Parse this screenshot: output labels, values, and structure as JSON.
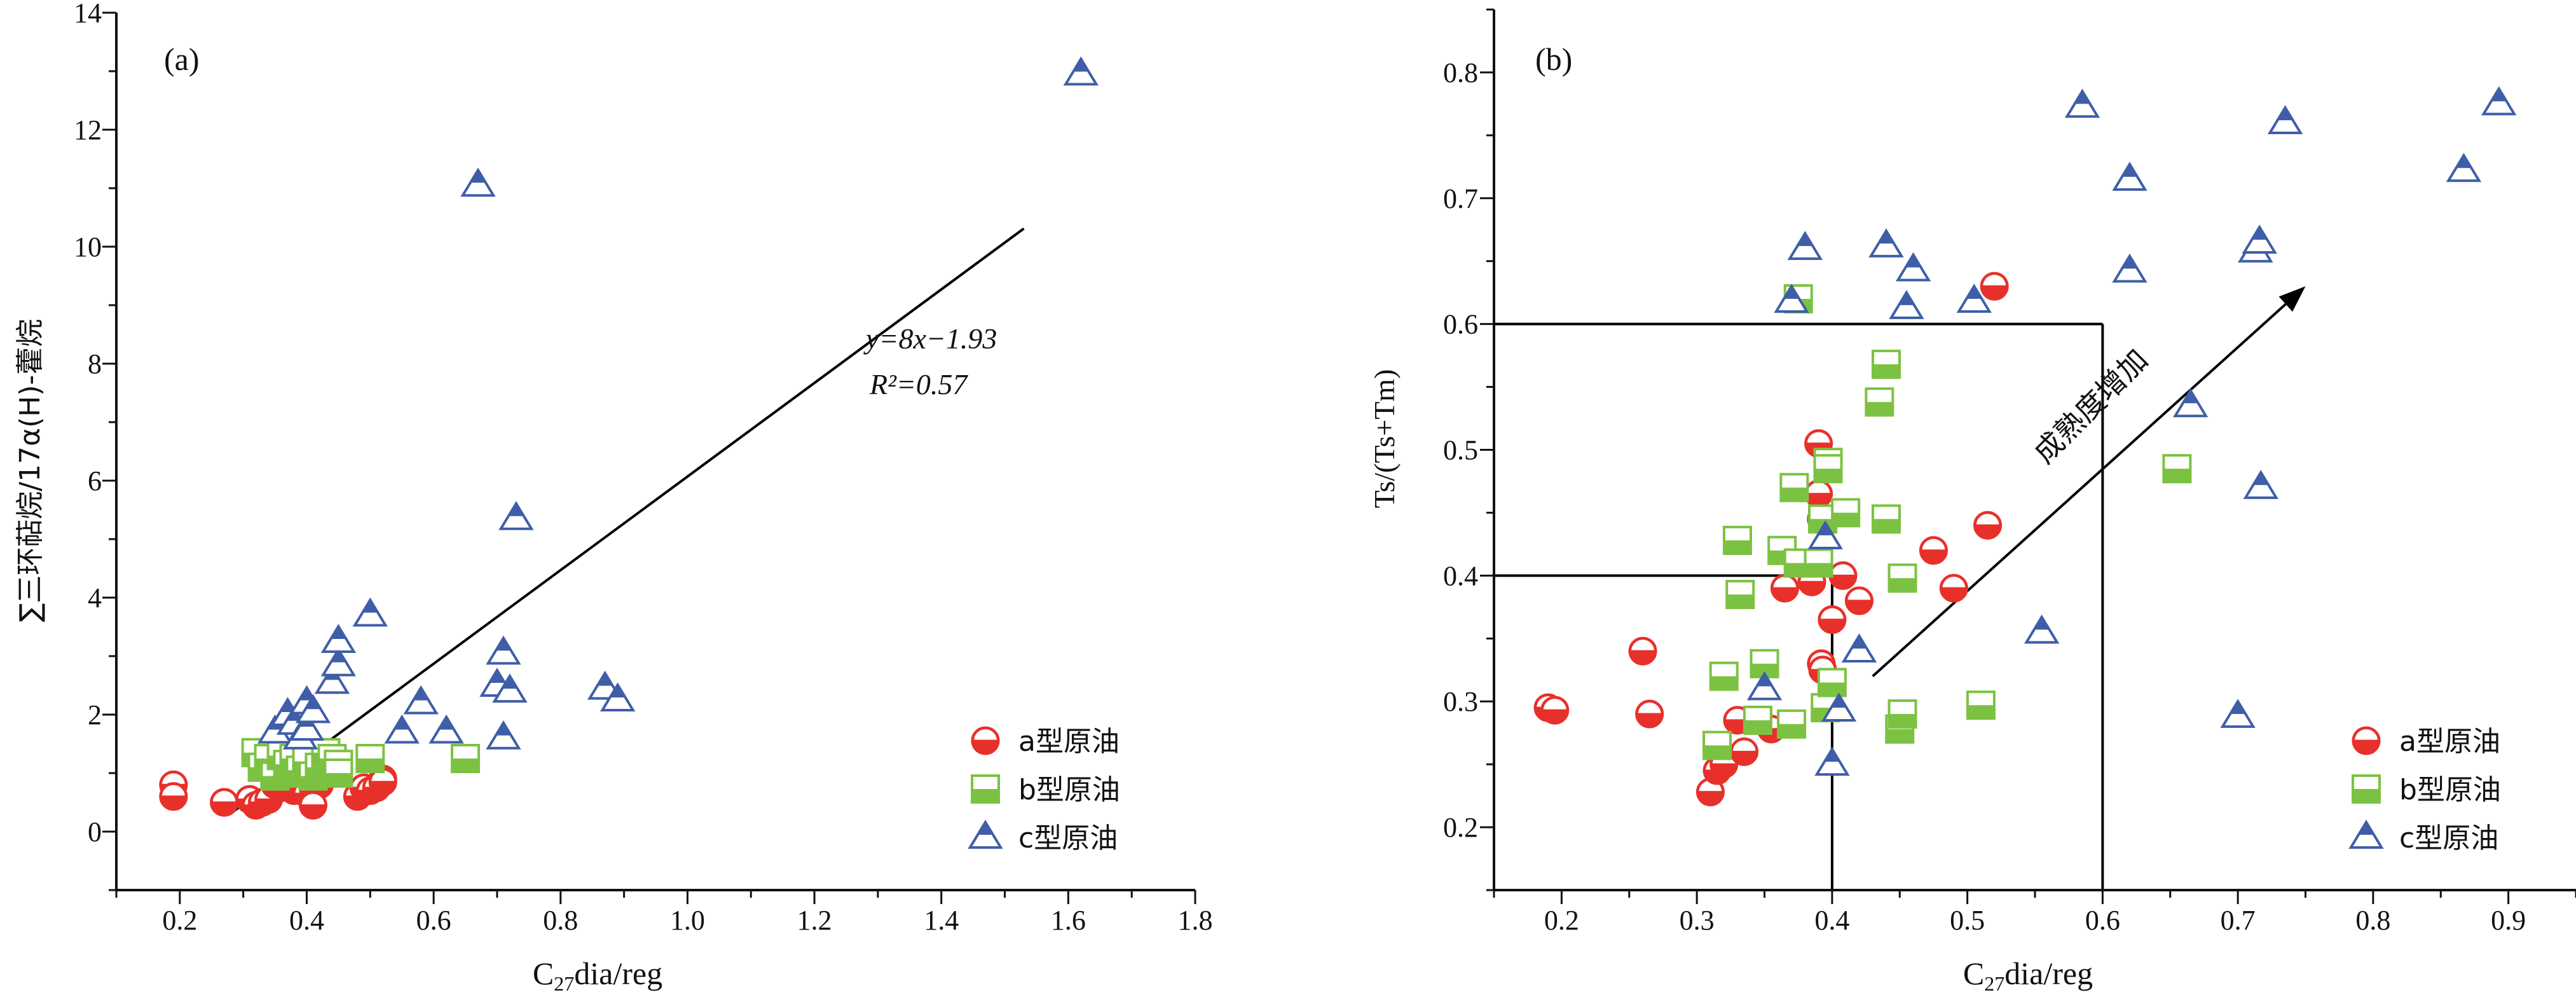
{
  "colors": {
    "a": "#e8302a",
    "b": "#7cc242",
    "c": "#3f5ea8",
    "axis": "#111111"
  },
  "legend_labels": [
    "a型原油",
    "b型原油",
    "c型原油"
  ],
  "chart_data": [
    {
      "type": "scatter",
      "panel_label": "(a)",
      "xlabel": "C27dia/reg",
      "ylabel": "∑三环萜烷/17α(H)-藿烷",
      "xlim": [
        0.1,
        1.8
      ],
      "ylim": [
        -1,
        14
      ],
      "xticks": [
        "0.2",
        "0.4",
        "0.6",
        "0.8",
        "1.0",
        "1.2",
        "1.4",
        "1.6",
        "1.8"
      ],
      "yticks": [
        "0",
        "2",
        "4",
        "6",
        "8",
        "10",
        "12",
        "14"
      ],
      "legend_position": "bottom-right",
      "equation": "y=8x−1.93",
      "r_squared": "R²=0.57",
      "fit_line": {
        "slope": 8,
        "intercept": -1.93,
        "x_range": [
          0.28,
          1.53
        ]
      },
      "series": [
        {
          "name": "a型原油",
          "marker": "circle",
          "points": [
            [
              0.19,
              0.8
            ],
            [
              0.19,
              0.6
            ],
            [
              0.27,
              0.5
            ],
            [
              0.27,
              0.5
            ],
            [
              0.31,
              0.55
            ],
            [
              0.32,
              0.45
            ],
            [
              0.33,
              0.5
            ],
            [
              0.34,
              0.55
            ],
            [
              0.35,
              0.8
            ],
            [
              0.36,
              0.75
            ],
            [
              0.37,
              0.9
            ],
            [
              0.38,
              0.7
            ],
            [
              0.39,
              0.85
            ],
            [
              0.4,
              0.65
            ],
            [
              0.41,
              0.75
            ],
            [
              0.42,
              0.8
            ],
            [
              0.41,
              0.45
            ],
            [
              0.43,
              0.95
            ],
            [
              0.48,
              0.6
            ],
            [
              0.49,
              0.75
            ],
            [
              0.5,
              0.7
            ],
            [
              0.51,
              0.75
            ],
            [
              0.52,
              0.9
            ],
            [
              0.52,
              0.85
            ]
          ]
        },
        {
          "name": "b型原油",
          "marker": "square",
          "points": [
            [
              0.32,
              1.35
            ],
            [
              0.33,
              1.1
            ],
            [
              0.34,
              1.25
            ],
            [
              0.35,
              0.95
            ],
            [
              0.36,
              1.3
            ],
            [
              0.37,
              1.15
            ],
            [
              0.38,
              1.0
            ],
            [
              0.38,
              1.25
            ],
            [
              0.39,
              1.05
            ],
            [
              0.4,
              1.2
            ],
            [
              0.41,
              0.95
            ],
            [
              0.42,
              1.1
            ],
            [
              0.43,
              1.35
            ],
            [
              0.44,
              1.25
            ],
            [
              0.45,
              1.15
            ],
            [
              0.45,
              1.0
            ],
            [
              0.5,
              1.25
            ],
            [
              0.65,
              1.25
            ]
          ]
        },
        {
          "name": "c型原油",
          "marker": "triangle",
          "points": [
            [
              0.35,
              1.7
            ],
            [
              0.37,
              2.0
            ],
            [
              0.38,
              1.85
            ],
            [
              0.39,
              1.6
            ],
            [
              0.4,
              1.75
            ],
            [
              0.4,
              2.2
            ],
            [
              0.41,
              2.05
            ],
            [
              0.44,
              2.55
            ],
            [
              0.45,
              2.85
            ],
            [
              0.45,
              3.25
            ],
            [
              0.5,
              3.7
            ],
            [
              0.55,
              1.7
            ],
            [
              0.58,
              2.2
            ],
            [
              0.62,
              1.7
            ],
            [
              0.67,
              11.05
            ],
            [
              0.7,
              2.5
            ],
            [
              0.71,
              1.6
            ],
            [
              0.71,
              3.05
            ],
            [
              0.72,
              2.4
            ],
            [
              0.73,
              5.35
            ],
            [
              0.87,
              2.45
            ],
            [
              0.89,
              2.25
            ],
            [
              1.62,
              12.95
            ]
          ]
        }
      ]
    },
    {
      "type": "scatter",
      "panel_label": "(b)",
      "xlabel": "C27dia/reg",
      "ylabel": "Ts/(Ts+Tm)",
      "xlim": [
        0.15,
        0.95
      ],
      "ylim": [
        0.15,
        0.85
      ],
      "xticks": [
        "0.2",
        "0.3",
        "0.4",
        "0.5",
        "0.6",
        "0.7",
        "0.8",
        "0.9"
      ],
      "yticks": [
        "0.2",
        "0.3",
        "0.4",
        "0.5",
        "0.6",
        "0.7",
        "0.8"
      ],
      "legend_position": "bottom-right",
      "annotation": "成熟度增加",
      "guide_lines": [
        {
          "from": [
            0.15,
            0.6
          ],
          "to": [
            0.6,
            0.6
          ]
        },
        {
          "from": [
            0.6,
            0.6
          ],
          "to": [
            0.6,
            0.15
          ]
        },
        {
          "from": [
            0.15,
            0.4
          ],
          "to": [
            0.4,
            0.4
          ]
        },
        {
          "from": [
            0.4,
            0.4
          ],
          "to": [
            0.4,
            0.15
          ]
        }
      ],
      "arrow": {
        "from": [
          0.43,
          0.32
        ],
        "to": [
          0.75,
          0.63
        ]
      },
      "series": [
        {
          "name": "a型原油",
          "marker": "circle",
          "points": [
            [
              0.19,
              0.295
            ],
            [
              0.195,
              0.293
            ],
            [
              0.26,
              0.34
            ],
            [
              0.265,
              0.29
            ],
            [
              0.31,
              0.228
            ],
            [
              0.315,
              0.245
            ],
            [
              0.32,
              0.25
            ],
            [
              0.33,
              0.285
            ],
            [
              0.335,
              0.26
            ],
            [
              0.355,
              0.278
            ],
            [
              0.365,
              0.39
            ],
            [
              0.385,
              0.395
            ],
            [
              0.39,
              0.505
            ],
            [
              0.39,
              0.465
            ],
            [
              0.392,
              0.445
            ],
            [
              0.392,
              0.33
            ],
            [
              0.393,
              0.325
            ],
            [
              0.4,
              0.365
            ],
            [
              0.408,
              0.4
            ],
            [
              0.42,
              0.38
            ],
            [
              0.475,
              0.42
            ],
            [
              0.49,
              0.39
            ],
            [
              0.515,
              0.44
            ],
            [
              0.52,
              0.63
            ]
          ]
        },
        {
          "name": "b型原油",
          "marker": "square",
          "points": [
            [
              0.315,
              0.265
            ],
            [
              0.32,
              0.32
            ],
            [
              0.33,
              0.428
            ],
            [
              0.332,
              0.385
            ],
            [
              0.345,
              0.285
            ],
            [
              0.35,
              0.33
            ],
            [
              0.363,
              0.42
            ],
            [
              0.37,
              0.282
            ],
            [
              0.372,
              0.47
            ],
            [
              0.375,
              0.41
            ],
            [
              0.375,
              0.62
            ],
            [
              0.39,
              0.41
            ],
            [
              0.393,
              0.445
            ],
            [
              0.395,
              0.295
            ],
            [
              0.397,
              0.49
            ],
            [
              0.397,
              0.485
            ],
            [
              0.4,
              0.315
            ],
            [
              0.41,
              0.45
            ],
            [
              0.435,
              0.538
            ],
            [
              0.44,
              0.445
            ],
            [
              0.44,
              0.568
            ],
            [
              0.45,
              0.278
            ],
            [
              0.452,
              0.29
            ],
            [
              0.452,
              0.398
            ],
            [
              0.51,
              0.297
            ],
            [
              0.655,
              0.485
            ]
          ]
        },
        {
          "name": "c型原油",
          "marker": "triangle",
          "points": [
            [
              0.35,
              0.31
            ],
            [
              0.37,
              0.618
            ],
            [
              0.38,
              0.66
            ],
            [
              0.395,
              0.43
            ],
            [
              0.4,
              0.25
            ],
            [
              0.405,
              0.293
            ],
            [
              0.42,
              0.34
            ],
            [
              0.44,
              0.662
            ],
            [
              0.455,
              0.613
            ],
            [
              0.46,
              0.643
            ],
            [
              0.505,
              0.618
            ],
            [
              0.555,
              0.355
            ],
            [
              0.585,
              0.773
            ],
            [
              0.62,
              0.715
            ],
            [
              0.62,
              0.642
            ],
            [
              0.665,
              0.535
            ],
            [
              0.7,
              0.288
            ],
            [
              0.713,
              0.658
            ],
            [
              0.716,
              0.665
            ],
            [
              0.717,
              0.47
            ],
            [
              0.735,
              0.76
            ],
            [
              0.867,
              0.722
            ],
            [
              0.893,
              0.775
            ]
          ]
        }
      ]
    }
  ]
}
